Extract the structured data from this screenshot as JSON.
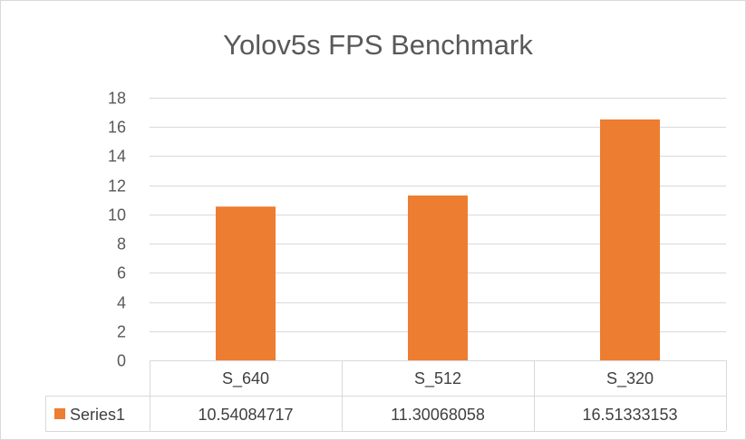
{
  "chart_data": {
    "type": "bar",
    "title": "Yolov5s FPS Benchmark",
    "categories": [
      "S_640",
      "S_512",
      "S_320"
    ],
    "series": [
      {
        "name": "Series1",
        "values": [
          10.54084717,
          11.30068058,
          16.51333153
        ],
        "value_labels": [
          "10.54084717",
          "11.30068058",
          "16.51333153"
        ],
        "color": "#ed7d31"
      }
    ],
    "ylim": [
      0,
      18
    ],
    "yticks": [
      "0",
      "2",
      "4",
      "6",
      "8",
      "10",
      "12",
      "14",
      "16",
      "18"
    ],
    "grid": true,
    "legend": "data-table-left",
    "data_table": true
  },
  "colors": {
    "gridline": "#d9d9d9",
    "text": "#595959",
    "bar": "#ed7d31"
  }
}
